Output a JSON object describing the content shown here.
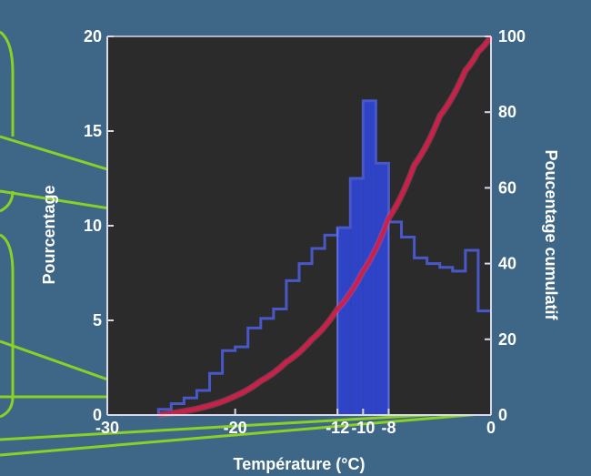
{
  "chart_data": {
    "type": "bar",
    "xlabel": "Température (°C)",
    "ylabel": "Pourcentage",
    "y2label": "Poucentage cumulatif",
    "x_ticks": [
      "-30",
      "-20",
      "-12",
      "-10",
      "-8",
      "0"
    ],
    "xlim": [
      -30,
      0
    ],
    "ylim": [
      0,
      20
    ],
    "y_ticks": [
      "0",
      "5",
      "10",
      "15",
      "20"
    ],
    "y2lim": [
      0,
      100
    ],
    "y2_ticks": [
      "0",
      "20",
      "40",
      "60",
      "80",
      "100"
    ],
    "grid": false,
    "highlight_range": [
      -12,
      -8
    ],
    "series": [
      {
        "kind": "histogram-step",
        "bins": [
          {
            "x0": -26,
            "x1": -25,
            "value": 0.3
          },
          {
            "x0": -25,
            "x1": -24,
            "value": 0.6
          },
          {
            "x0": -24,
            "x1": -23,
            "value": 0.9
          },
          {
            "x0": -23,
            "x1": -22,
            "value": 1.3
          },
          {
            "x0": -22,
            "x1": -21,
            "value": 2.2
          },
          {
            "x0": -21,
            "x1": -20,
            "value": 3.4
          },
          {
            "x0": -20,
            "x1": -19,
            "value": 3.6
          },
          {
            "x0": -19,
            "x1": -18,
            "value": 4.6
          },
          {
            "x0": -18,
            "x1": -17,
            "value": 5.1
          },
          {
            "x0": -17,
            "x1": -16,
            "value": 5.6
          },
          {
            "x0": -16,
            "x1": -15,
            "value": 7.1
          },
          {
            "x0": -15,
            "x1": -14,
            "value": 8.0
          },
          {
            "x0": -14,
            "x1": -13,
            "value": 8.8
          },
          {
            "x0": -13,
            "x1": -12,
            "value": 9.5
          },
          {
            "x0": -12,
            "x1": -11,
            "value": 9.9
          },
          {
            "x0": -11,
            "x1": -10,
            "value": 12.5
          },
          {
            "x0": -10,
            "x1": -9,
            "value": 16.6
          },
          {
            "x0": -9,
            "x1": -8,
            "value": 13.3
          },
          {
            "x0": -8,
            "x1": -7,
            "value": 10.2
          },
          {
            "x0": -7,
            "x1": -6,
            "value": 9.4
          },
          {
            "x0": -6,
            "x1": -5,
            "value": 8.3
          },
          {
            "x0": -5,
            "x1": -4,
            "value": 8.0
          },
          {
            "x0": -4,
            "x1": -3,
            "value": 7.8
          },
          {
            "x0": -3,
            "x1": -2,
            "value": 7.6
          },
          {
            "x0": -2,
            "x1": -1,
            "value": 8.7
          },
          {
            "x0": -1,
            "x1": 0,
            "value": 5.5
          }
        ]
      },
      {
        "kind": "cumulative-line",
        "axis": "right",
        "x": [
          -26,
          -24,
          -22,
          -20,
          -18,
          -16,
          -14,
          -12,
          -10,
          -8,
          -6,
          -4,
          -2,
          -1,
          0
        ],
        "values": [
          0,
          1,
          2.5,
          5,
          9,
          14,
          20,
          28,
          38,
          52,
          66,
          79,
          91,
          96,
          100
        ]
      }
    ],
    "colors": {
      "plot_background": "#2c2b2c",
      "page_background": "#3e6787",
      "histogram_outline": "#4858c8",
      "highlight_fill": "#2f46d6",
      "cumulative_line": "#cf1f47",
      "leader_lines": "#8ad026",
      "axis_color": "#d9d9e9"
    }
  }
}
